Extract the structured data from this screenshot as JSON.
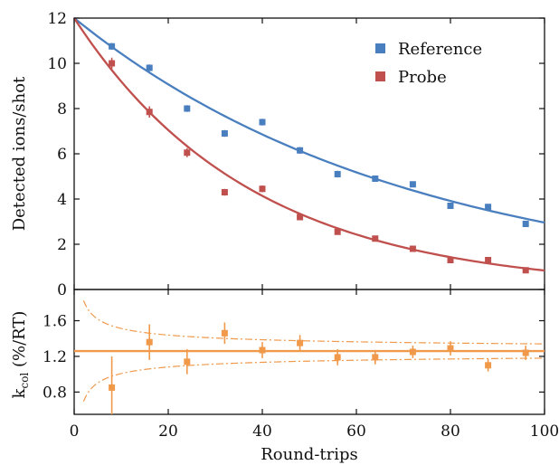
{
  "chart_data": [
    {
      "type": "scatter",
      "xlabel": "",
      "ylabel": "Detected ions/shot",
      "xlim": [
        0,
        100
      ],
      "ylim": [
        0,
        12
      ],
      "xticks": [
        0,
        20,
        40,
        60,
        80,
        100
      ],
      "yticks": [
        0,
        2,
        4,
        6,
        8,
        10,
        12
      ],
      "legend_position": "upper-right",
      "series": [
        {
          "name": "Reference",
          "color": "#4a7fbf",
          "marker": "square",
          "x": [
            8,
            16,
            24,
            32,
            40,
            48,
            56,
            64,
            72,
            80,
            88,
            96
          ],
          "y": [
            10.75,
            9.8,
            8.0,
            6.9,
            7.4,
            6.15,
            5.1,
            4.9,
            4.65,
            3.7,
            3.65,
            2.9
          ],
          "yerr": [
            0.15,
            0.15,
            0.15,
            0.15,
            0.15,
            0.15,
            0.15,
            0.12,
            0.12,
            0.12,
            0.12,
            0.12
          ],
          "fit": {
            "model": "exponential",
            "y0": 12,
            "decay_per_rt": 0.014
          }
        },
        {
          "name": "Probe",
          "color": "#c0504d",
          "marker": "square",
          "x": [
            8,
            16,
            24,
            32,
            40,
            48,
            56,
            64,
            72,
            80,
            88,
            96
          ],
          "y": [
            10.0,
            7.85,
            6.05,
            4.3,
            4.45,
            3.2,
            2.55,
            2.25,
            1.8,
            1.3,
            1.3,
            0.85
          ],
          "yerr": [
            0.25,
            0.25,
            0.2,
            0.15,
            0.15,
            0.12,
            0.1,
            0.1,
            0.1,
            0.1,
            0.1,
            0.08
          ],
          "fit": {
            "model": "exponential",
            "y0": 12,
            "decay_per_rt": 0.0266
          }
        }
      ]
    },
    {
      "type": "scatter",
      "xlabel": "Round-trips",
      "ylabel": "k",
      "ylabel_sub": "col",
      "ylabel_suffix": " (%/RT)",
      "xlim": [
        0,
        100
      ],
      "ylim": [
        0.55,
        1.95
      ],
      "xticks": [
        0,
        20,
        40,
        60,
        80,
        100
      ],
      "yticks": [
        0.8,
        1.2,
        1.6
      ],
      "series": [
        {
          "color": "#f0994a",
          "marker": "square",
          "x": [
            8,
            16,
            24,
            32,
            40,
            48,
            56,
            64,
            72,
            80,
            88,
            96
          ],
          "y": [
            0.85,
            1.36,
            1.14,
            1.46,
            1.27,
            1.35,
            1.19,
            1.19,
            1.25,
            1.29,
            1.1,
            1.24
          ],
          "yerr": [
            0.35,
            0.2,
            0.14,
            0.12,
            0.09,
            0.09,
            0.09,
            0.08,
            0.07,
            0.08,
            0.07,
            0.08
          ]
        }
      ],
      "fit_line": {
        "value": 1.26,
        "color": "#f0994a"
      },
      "confidence_band": {
        "center": 1.26,
        "scale": 0.8,
        "color": "#f0994a",
        "style": "dash-dot"
      }
    }
  ]
}
